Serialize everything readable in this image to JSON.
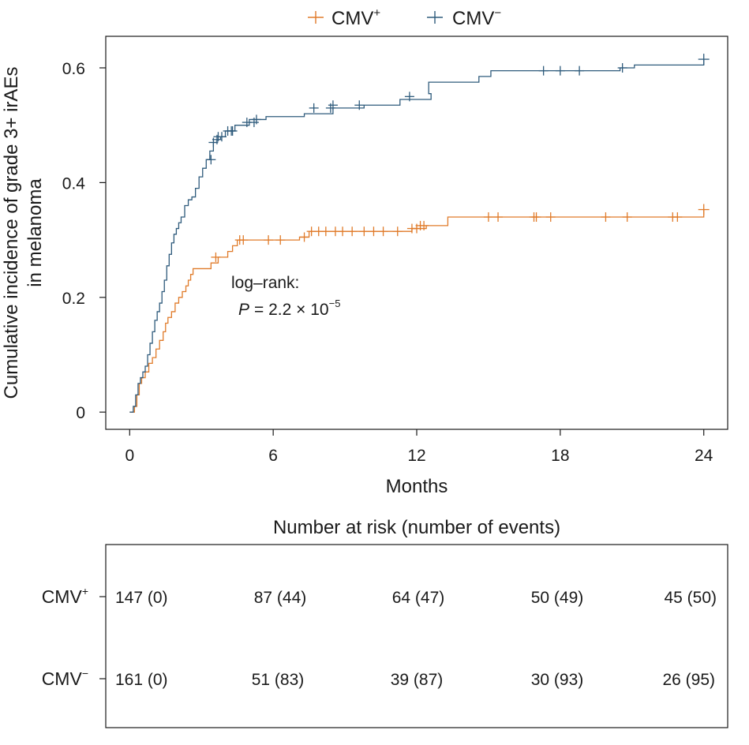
{
  "chart_data": {
    "type": "line",
    "subtype": "kaplan-meier-cumulative-incidence",
    "xlabel": "Months",
    "ylabel_lines": [
      "Cumulative incidence of grade 3+ irAEs",
      "in melanoma"
    ],
    "xlim": [
      -1,
      25
    ],
    "ylim": [
      -0.03,
      0.655
    ],
    "x_ticks": [
      0,
      6,
      12,
      18,
      24
    ],
    "x_tick_labels": [
      "0",
      "6",
      "12",
      "18",
      "24"
    ],
    "y_ticks": [
      0,
      0.2,
      0.4,
      0.6
    ],
    "y_tick_labels": [
      "0",
      "0.2",
      "0.4",
      "0.6"
    ],
    "legend_position": "top-center",
    "annotation": {
      "line1": "log–rank:",
      "p_label": "P",
      "p_value": "= 2.2 × 10",
      "p_exponent": "−5"
    },
    "series": [
      {
        "name": "CMV+",
        "legend_base": "CMV",
        "legend_sup": "+",
        "color": "#e07b2a",
        "steps": [
          [
            0,
            0
          ],
          [
            0.2,
            0.01
          ],
          [
            0.3,
            0.03
          ],
          [
            0.4,
            0.05
          ],
          [
            0.5,
            0.06
          ],
          [
            0.65,
            0.07
          ],
          [
            0.8,
            0.085
          ],
          [
            0.95,
            0.095
          ],
          [
            1.1,
            0.11
          ],
          [
            1.25,
            0.125
          ],
          [
            1.4,
            0.14
          ],
          [
            1.5,
            0.155
          ],
          [
            1.6,
            0.165
          ],
          [
            1.75,
            0.175
          ],
          [
            1.9,
            0.19
          ],
          [
            2.05,
            0.2
          ],
          [
            2.2,
            0.21
          ],
          [
            2.35,
            0.22
          ],
          [
            2.45,
            0.23
          ],
          [
            2.55,
            0.24
          ],
          [
            2.65,
            0.25
          ],
          [
            3.4,
            0.26
          ],
          [
            3.7,
            0.27
          ],
          [
            4.1,
            0.28
          ],
          [
            4.3,
            0.29
          ],
          [
            4.5,
            0.3
          ],
          [
            7.1,
            0.305
          ],
          [
            7.5,
            0.315
          ],
          [
            11.8,
            0.32
          ],
          [
            12.4,
            0.325
          ],
          [
            13.3,
            0.34
          ],
          [
            24,
            0.34
          ],
          [
            24,
            0.353
          ]
        ],
        "censor_times": [
          3.6,
          4.6,
          4.75,
          5.8,
          6.3,
          7.3,
          7.6,
          7.9,
          8.2,
          8.6,
          8.9,
          9.3,
          9.8,
          10.2,
          10.6,
          11.2,
          11.8,
          12.0,
          12.15,
          12.3,
          15.0,
          15.4,
          16.9,
          17.0,
          17.6,
          19.9,
          20.8,
          22.7,
          22.9,
          24.0
        ],
        "censor_values": [
          0.27,
          0.3,
          0.3,
          0.3,
          0.3,
          0.305,
          0.315,
          0.315,
          0.315,
          0.315,
          0.315,
          0.315,
          0.315,
          0.315,
          0.315,
          0.315,
          0.32,
          0.32,
          0.325,
          0.325,
          0.34,
          0.34,
          0.34,
          0.34,
          0.34,
          0.34,
          0.34,
          0.34,
          0.34,
          0.353
        ]
      },
      {
        "name": "CMV−",
        "legend_base": "CMV",
        "legend_sup": "−",
        "color": "#2f5b7c",
        "steps": [
          [
            0,
            0
          ],
          [
            0.15,
            0.01
          ],
          [
            0.25,
            0.03
          ],
          [
            0.35,
            0.05
          ],
          [
            0.45,
            0.06
          ],
          [
            0.55,
            0.07
          ],
          [
            0.65,
            0.08
          ],
          [
            0.75,
            0.1
          ],
          [
            0.85,
            0.12
          ],
          [
            0.95,
            0.14
          ],
          [
            1.05,
            0.16
          ],
          [
            1.15,
            0.175
          ],
          [
            1.25,
            0.19
          ],
          [
            1.35,
            0.21
          ],
          [
            1.45,
            0.23
          ],
          [
            1.55,
            0.255
          ],
          [
            1.65,
            0.275
          ],
          [
            1.75,
            0.295
          ],
          [
            1.85,
            0.31
          ],
          [
            1.95,
            0.32
          ],
          [
            2.05,
            0.33
          ],
          [
            2.15,
            0.34
          ],
          [
            2.3,
            0.36
          ],
          [
            2.45,
            0.37
          ],
          [
            2.6,
            0.375
          ],
          [
            2.75,
            0.39
          ],
          [
            2.9,
            0.41
          ],
          [
            3.05,
            0.425
          ],
          [
            3.2,
            0.44
          ],
          [
            3.35,
            0.455
          ],
          [
            3.5,
            0.47
          ],
          [
            3.65,
            0.475
          ],
          [
            3.8,
            0.48
          ],
          [
            4.0,
            0.49
          ],
          [
            4.4,
            0.5
          ],
          [
            5.0,
            0.51
          ],
          [
            5.7,
            0.515
          ],
          [
            7.3,
            0.52
          ],
          [
            8.5,
            0.53
          ],
          [
            9.8,
            0.535
          ],
          [
            11.3,
            0.545
          ],
          [
            12.6,
            0.555
          ],
          [
            12.5,
            0.575
          ],
          [
            14.6,
            0.585
          ],
          [
            15.1,
            0.595
          ],
          [
            20.5,
            0.6
          ],
          [
            21.1,
            0.605
          ],
          [
            24,
            0.605
          ],
          [
            24,
            0.615
          ]
        ],
        "censor_times": [
          3.4,
          3.5,
          3.65,
          3.7,
          3.85,
          4.1,
          4.25,
          4.3,
          4.9,
          5.2,
          5.3,
          7.7,
          8.4,
          8.5,
          9.6,
          11.7,
          17.3,
          18.0,
          18.8,
          20.6,
          24.0
        ],
        "censor_values": [
          0.44,
          0.47,
          0.475,
          0.48,
          0.48,
          0.49,
          0.49,
          0.49,
          0.505,
          0.505,
          0.51,
          0.53,
          0.53,
          0.535,
          0.535,
          0.55,
          0.595,
          0.595,
          0.595,
          0.6,
          0.615
        ]
      }
    ]
  },
  "risk_table": {
    "title": "Number at risk (number of events)",
    "times": [
      0,
      6,
      12,
      18,
      24
    ],
    "rows": [
      {
        "label_base": "CMV",
        "label_sup": "+",
        "values": [
          "147 (0)",
          "87 (44)",
          "64 (47)",
          "50 (49)",
          "45 (50)"
        ]
      },
      {
        "label_base": "CMV",
        "label_sup": "−",
        "values": [
          "161 (0)",
          "51 (83)",
          "39 (87)",
          "30 (93)",
          "26 (95)"
        ]
      }
    ]
  }
}
